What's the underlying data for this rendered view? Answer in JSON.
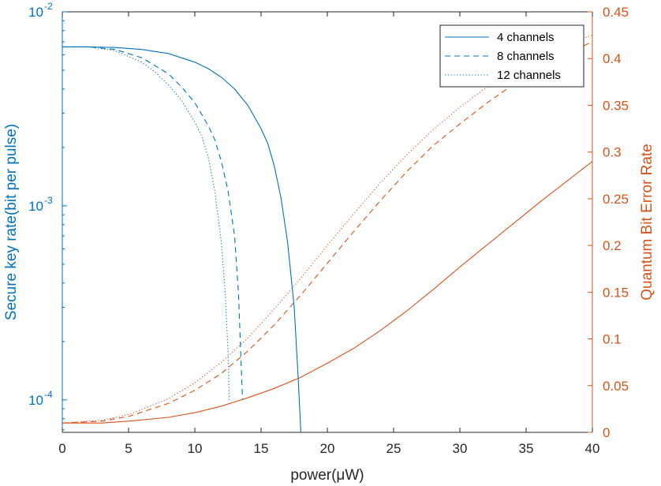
{
  "chart_data": {
    "type": "line",
    "xlabel": "power(μW)",
    "xlim": [
      0,
      40
    ],
    "x_ticks": [
      0,
      5,
      10,
      15,
      20,
      25,
      30,
      35,
      40
    ],
    "x_tick_labels": [
      "0",
      "5",
      "10",
      "15",
      "20",
      "25",
      "30",
      "35",
      "40"
    ],
    "left_axis": {
      "label": "Secure key rate(bit per pulse)",
      "scale": "log",
      "ylim": [
        6.8e-05,
        0.01
      ],
      "ticks": [
        0.0001,
        0.001,
        0.01
      ],
      "tick_labels": [
        {
          "base": "10",
          "exp": "-4"
        },
        {
          "base": "10",
          "exp": "-3"
        },
        {
          "base": "10",
          "exp": "-2"
        }
      ],
      "color": "#0072BD"
    },
    "right_axis": {
      "label": "Quantum Bit Error Rate",
      "scale": "linear",
      "ylim": [
        0,
        0.45
      ],
      "ticks": [
        0,
        0.05,
        0.1,
        0.15,
        0.2,
        0.25,
        0.3,
        0.35,
        0.4,
        0.45
      ],
      "tick_labels": [
        "0",
        "0.05",
        "0.1",
        "0.15",
        "0.2",
        "0.25",
        "0.3",
        "0.35",
        "0.4",
        "0.45"
      ],
      "color": "#D95319"
    },
    "legend": {
      "position": "top-right",
      "entries": [
        {
          "name": "4 channels",
          "style": "solid"
        },
        {
          "name": "8 channels",
          "style": "dashed"
        },
        {
          "name": "12 channels",
          "style": "dotted"
        }
      ]
    },
    "key_rate_series": [
      {
        "name": "4 channels",
        "style": "solid",
        "axis": "left",
        "x": [
          0,
          2,
          4,
          6,
          8,
          10,
          11,
          12,
          13,
          14,
          15,
          15.5,
          16,
          16.5,
          17,
          17.5,
          17.8,
          18.0
        ],
        "y": [
          0.0066,
          0.0066,
          0.00655,
          0.0064,
          0.0061,
          0.0055,
          0.0051,
          0.0046,
          0.004,
          0.0033,
          0.0025,
          0.0021,
          0.0016,
          0.0011,
          0.00065,
          0.0003,
          0.00013,
          6.8e-05
        ]
      },
      {
        "name": "8 channels",
        "style": "dashed",
        "axis": "left",
        "x": [
          0,
          2,
          4,
          6,
          8,
          9,
          10,
          11,
          11.5,
          12,
          12.5,
          13,
          13.3,
          13.5,
          13.6
        ],
        "y": [
          0.0066,
          0.0066,
          0.0064,
          0.0058,
          0.0048,
          0.0041,
          0.0034,
          0.0026,
          0.0022,
          0.0017,
          0.0012,
          0.0007,
          0.00035,
          0.00015,
          0.0001
        ]
      },
      {
        "name": "12 channels",
        "style": "dotted",
        "axis": "left",
        "x": [
          0,
          2,
          4,
          6,
          7,
          8,
          9,
          10,
          10.5,
          11,
          11.5,
          12,
          12.3,
          12.5,
          12.6
        ],
        "y": [
          0.0066,
          0.0066,
          0.0063,
          0.0055,
          0.0049,
          0.0042,
          0.0035,
          0.0027,
          0.0023,
          0.0018,
          0.0012,
          0.00065,
          0.00035,
          0.00018,
          0.0001
        ]
      }
    ],
    "qber_series": [
      {
        "name": "4 channels",
        "style": "solid",
        "axis": "right",
        "x": [
          0,
          3,
          5,
          8,
          10,
          12,
          14,
          16,
          18,
          20,
          22,
          24,
          26,
          28,
          30,
          32,
          34,
          36,
          38,
          40
        ],
        "y": [
          0.01,
          0.01,
          0.012,
          0.016,
          0.021,
          0.028,
          0.037,
          0.047,
          0.059,
          0.074,
          0.09,
          0.109,
          0.13,
          0.153,
          0.177,
          0.2,
          0.223,
          0.246,
          0.268,
          0.29
        ]
      },
      {
        "name": "8 channels",
        "style": "dashed",
        "axis": "right",
        "x": [
          0,
          3,
          5,
          8,
          10,
          12,
          14,
          16,
          18,
          20,
          22,
          24,
          26,
          28,
          30,
          32,
          34,
          36,
          38,
          40
        ],
        "y": [
          0.01,
          0.012,
          0.017,
          0.031,
          0.045,
          0.063,
          0.087,
          0.115,
          0.147,
          0.181,
          0.215,
          0.248,
          0.279,
          0.307,
          0.33,
          0.352,
          0.372,
          0.39,
          0.405,
          0.418
        ]
      },
      {
        "name": "12 channels",
        "style": "dotted",
        "axis": "right",
        "x": [
          0,
          3,
          5,
          8,
          10,
          12,
          14,
          16,
          18,
          20,
          22,
          24,
          26,
          28,
          30,
          32,
          34,
          36,
          38,
          40
        ],
        "y": [
          0.01,
          0.013,
          0.019,
          0.036,
          0.053,
          0.075,
          0.101,
          0.132,
          0.165,
          0.2,
          0.234,
          0.267,
          0.297,
          0.324,
          0.348,
          0.369,
          0.387,
          0.402,
          0.415,
          0.425
        ]
      }
    ]
  }
}
